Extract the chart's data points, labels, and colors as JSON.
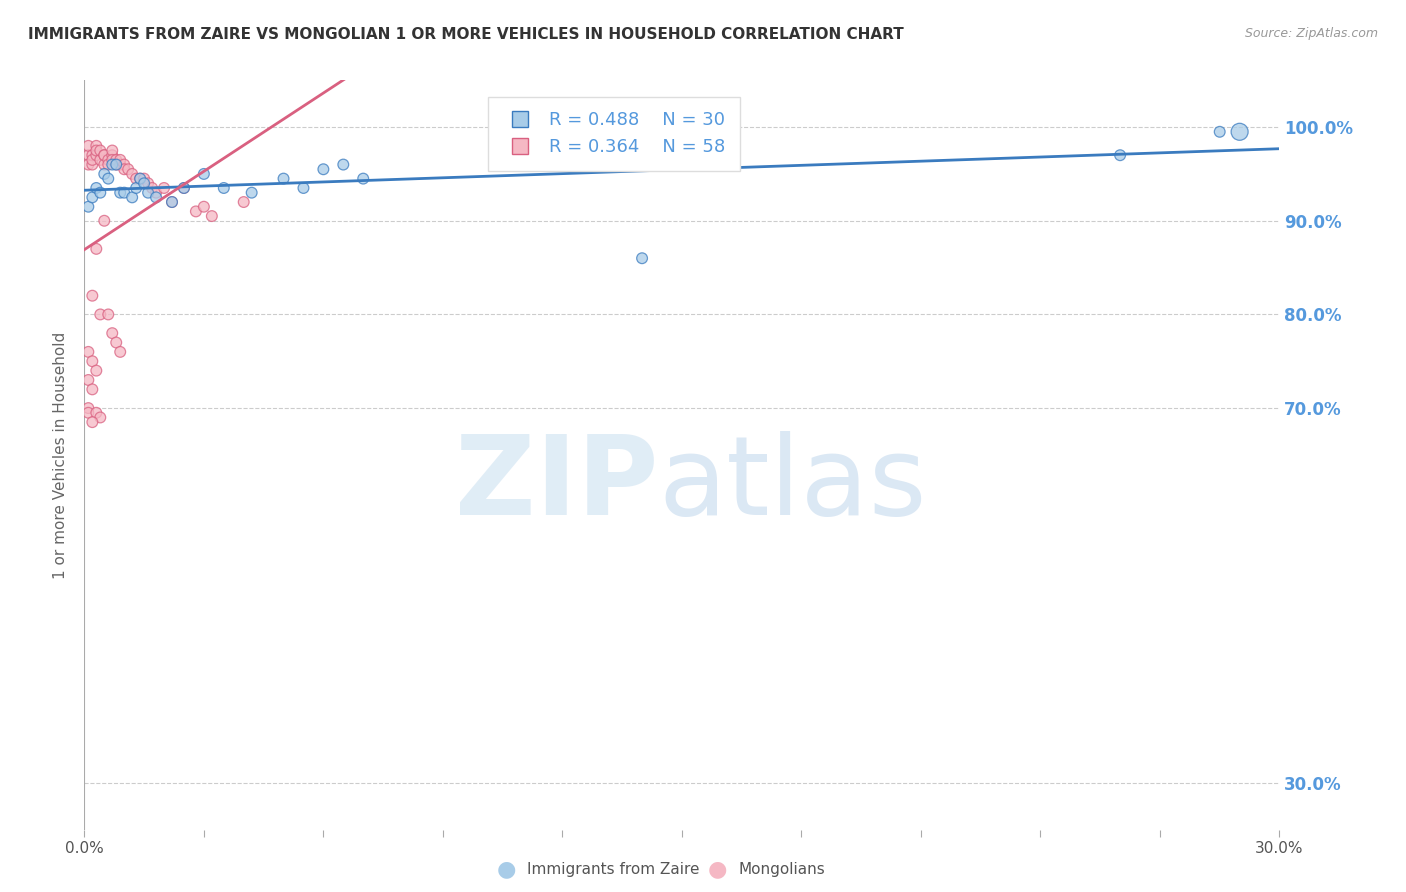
{
  "title": "IMMIGRANTS FROM ZAIRE VS MONGOLIAN 1 OR MORE VEHICLES IN HOUSEHOLD CORRELATION CHART",
  "source": "Source: ZipAtlas.com",
  "ylabel": "1 or more Vehicles in Household",
  "watermark_zip": "ZIP",
  "watermark_atlas": "atlas",
  "legend_blue_r": "R = 0.488",
  "legend_blue_n": "N = 30",
  "legend_pink_r": "R = 0.364",
  "legend_pink_n": "N = 58",
  "blue_color": "#a8cce8",
  "pink_color": "#f5b8c4",
  "blue_line_color": "#3a7bbf",
  "pink_line_color": "#d96080",
  "ytick_color": "#5599dd",
  "ytick_labels": [
    "100.0%",
    "90.0%",
    "80.0%",
    "70.0%",
    "30.0%"
  ],
  "ytick_values": [
    1.0,
    0.9,
    0.8,
    0.7,
    0.3
  ],
  "xlim": [
    0.0,
    0.3
  ],
  "ylim": [
    0.25,
    1.05
  ],
  "blue_x": [
    0.001,
    0.002,
    0.003,
    0.004,
    0.005,
    0.006,
    0.007,
    0.008,
    0.009,
    0.01,
    0.012,
    0.013,
    0.014,
    0.015,
    0.016,
    0.018,
    0.022,
    0.025,
    0.03,
    0.035,
    0.042,
    0.05,
    0.055,
    0.06,
    0.065,
    0.07,
    0.14,
    0.26,
    0.285,
    0.29
  ],
  "blue_y": [
    0.915,
    0.925,
    0.935,
    0.93,
    0.95,
    0.945,
    0.96,
    0.96,
    0.93,
    0.93,
    0.925,
    0.935,
    0.945,
    0.94,
    0.93,
    0.925,
    0.92,
    0.935,
    0.95,
    0.935,
    0.93,
    0.945,
    0.935,
    0.955,
    0.96,
    0.945,
    0.86,
    0.97,
    0.995,
    0.995
  ],
  "blue_sizes": [
    60,
    60,
    60,
    60,
    60,
    60,
    60,
    60,
    60,
    60,
    60,
    60,
    60,
    60,
    60,
    60,
    60,
    60,
    60,
    60,
    60,
    60,
    60,
    60,
    60,
    60,
    60,
    60,
    60,
    150
  ],
  "pink_x": [
    0.001,
    0.001,
    0.001,
    0.002,
    0.002,
    0.002,
    0.003,
    0.003,
    0.003,
    0.004,
    0.004,
    0.005,
    0.005,
    0.005,
    0.006,
    0.006,
    0.007,
    0.007,
    0.007,
    0.008,
    0.008,
    0.009,
    0.009,
    0.01,
    0.01,
    0.011,
    0.012,
    0.013,
    0.014,
    0.015,
    0.016,
    0.017,
    0.018,
    0.02,
    0.022,
    0.025,
    0.028,
    0.03,
    0.032,
    0.04,
    0.005,
    0.003,
    0.002,
    0.004,
    0.006,
    0.007,
    0.008,
    0.009,
    0.001,
    0.002,
    0.003,
    0.001,
    0.002,
    0.001,
    0.001,
    0.003,
    0.004,
    0.002
  ],
  "pink_y": [
    0.97,
    0.96,
    0.98,
    0.96,
    0.97,
    0.965,
    0.97,
    0.98,
    0.975,
    0.965,
    0.975,
    0.97,
    0.96,
    0.97,
    0.965,
    0.96,
    0.97,
    0.975,
    0.965,
    0.96,
    0.965,
    0.96,
    0.965,
    0.96,
    0.955,
    0.955,
    0.95,
    0.945,
    0.945,
    0.945,
    0.94,
    0.935,
    0.93,
    0.935,
    0.92,
    0.935,
    0.91,
    0.915,
    0.905,
    0.92,
    0.9,
    0.87,
    0.82,
    0.8,
    0.8,
    0.78,
    0.77,
    0.76,
    0.76,
    0.75,
    0.74,
    0.73,
    0.72,
    0.7,
    0.695,
    0.695,
    0.69,
    0.685
  ],
  "pink_sizes": [
    60,
    60,
    60,
    60,
    60,
    60,
    60,
    60,
    60,
    60,
    60,
    60,
    60,
    60,
    60,
    60,
    60,
    60,
    60,
    60,
    60,
    60,
    60,
    60,
    60,
    60,
    60,
    60,
    60,
    60,
    60,
    60,
    60,
    60,
    60,
    60,
    60,
    60,
    60,
    60,
    60,
    60,
    60,
    60,
    60,
    60,
    60,
    60,
    60,
    60,
    60,
    60,
    60,
    60,
    60,
    60,
    60,
    60
  ],
  "grid_color": "#cccccc",
  "background_color": "#ffffff"
}
